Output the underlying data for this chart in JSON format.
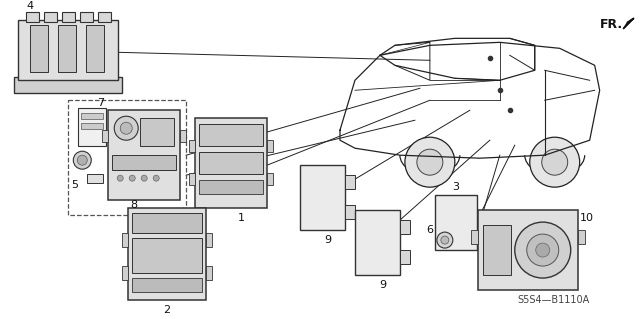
{
  "bg_color": "#ffffff",
  "diagram_code": "S5S4—B1110A",
  "fr_label": "FR.",
  "line_color": "#222222",
  "part_color": "#e8e8e8",
  "part_edge": "#333333"
}
